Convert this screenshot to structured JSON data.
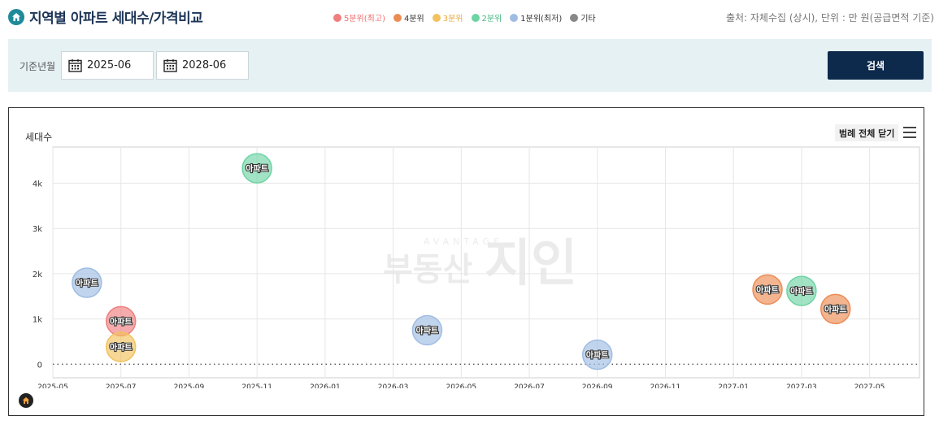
{
  "header": {
    "title": "지역별 아파트 세대수/가격비교",
    "source": "출처: 자체수집 (상시), 단위 : 만 원(공급면적 기준)",
    "legend": [
      {
        "label": "5분위(최고)",
        "color": "#ef7e7e",
        "text_color": "#ef6b6b"
      },
      {
        "label": "4분위",
        "color": "#ec8c55",
        "text_color": "#333333"
      },
      {
        "label": "3분위",
        "color": "#f1c25e",
        "text_color": "#e8a93c"
      },
      {
        "label": "2분위",
        "color": "#6ed4a4",
        "text_color": "#48b884"
      },
      {
        "label": "1분위(최저)",
        "color": "#9fbde3",
        "text_color": "#333333"
      },
      {
        "label": "기타",
        "color": "#888888",
        "text_color": "#333333"
      }
    ]
  },
  "filter": {
    "label": "기준년월",
    "start": "2025-06",
    "end": "2028-06",
    "search_label": "검색"
  },
  "chart_controls": {
    "y_title": "세대수",
    "legend_close": "범례 전체 닫기"
  },
  "watermark": {
    "top": "AVANTAGE",
    "main": "부동산",
    "brand": "지인"
  },
  "chart_data": {
    "type": "scatter",
    "ylabel": "세대수",
    "xlabel": "",
    "ylim": [
      -300,
      4800
    ],
    "xlim": [
      "2025-05",
      "2027-06-15"
    ],
    "y_ticks": [
      0,
      1000,
      2000,
      3000,
      4000
    ],
    "y_tick_labels": [
      "0",
      "1k",
      "2k",
      "3k",
      "4k"
    ],
    "x_tick_labels": [
      "2025-05",
      "2025-07",
      "2025-09",
      "2025-11",
      "2026-01",
      "2026-03",
      "2026-05",
      "2026-07",
      "2026-09",
      "2026-11",
      "2027-01",
      "2027-03",
      "2027-05"
    ],
    "grid": true,
    "points": [
      {
        "x": "2025-06",
        "y": 1800,
        "label": "아파트",
        "quintile": "1분위(최저)",
        "color": "#9fbde3"
      },
      {
        "x": "2025-07",
        "y": 950,
        "label": "아파트",
        "quintile": "5분위(최고)",
        "color": "#ef7e7e"
      },
      {
        "x": "2025-07",
        "y": 380,
        "label": "아파트",
        "quintile": "3분위",
        "color": "#f1c25e"
      },
      {
        "x": "2025-11",
        "y": 4330,
        "label": "아파트",
        "quintile": "2분위",
        "color": "#6ed4a4"
      },
      {
        "x": "2026-04",
        "y": 750,
        "label": "아파트",
        "quintile": "1분위(최저)",
        "color": "#9fbde3"
      },
      {
        "x": "2026-09",
        "y": 210,
        "label": "아파트",
        "quintile": "1분위(최저)",
        "color": "#9fbde3"
      },
      {
        "x": "2027-02",
        "y": 1650,
        "label": "아파트",
        "quintile": "4분위",
        "color": "#ec8c55"
      },
      {
        "x": "2027-03",
        "y": 1620,
        "label": "아파트",
        "quintile": "2분위",
        "color": "#6ed4a4"
      },
      {
        "x": "2027-04",
        "y": 1220,
        "label": "아파트",
        "quintile": "4분위",
        "color": "#ec8c55"
      }
    ]
  }
}
